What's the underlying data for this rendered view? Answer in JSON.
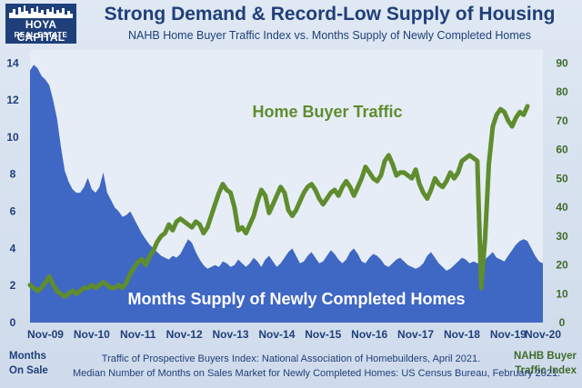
{
  "logo": {
    "main": "HOYA CAPITAL",
    "sub": "REAL ESTATE"
  },
  "header": {
    "title": "Strong Demand & Record-Low Supply of Housing",
    "subtitle": "NAHB Home Buyer Traffic Index vs. Months Supply of Newly Completed Homes"
  },
  "footer": {
    "left_axis_title": [
      "Months",
      "On Sale"
    ],
    "right_axis_title": [
      "NAHB Buyer",
      "Traffic Index"
    ],
    "note_1": "Traffic of Prospective Buyers Index: National Association of Homebuilders, April 2021.",
    "note_2": "Median Number of Months on Sales Market for Newly Completed Homes: US Census Bureau, February 2021."
  },
  "chart_data": {
    "type": "area",
    "title": "Strong Demand & Record-Low Supply of Housing",
    "x_categories": [
      "Nov-09",
      "Nov-10",
      "Nov-11",
      "Nov-12",
      "Nov-13",
      "Nov-14",
      "Nov-15",
      "Nov-16",
      "Nov-17",
      "Nov-18",
      "Nov-19",
      "Nov-20"
    ],
    "y_left": {
      "label": "Months On Sale",
      "ticks": [
        0,
        2,
        4,
        6,
        8,
        10,
        12,
        14
      ],
      "range": [
        0,
        14.7
      ]
    },
    "y_right": {
      "label": "NAHB Buyer Traffic Index",
      "ticks": [
        0,
        10,
        20,
        30,
        40,
        50,
        60,
        70,
        80,
        90
      ],
      "range": [
        0,
        94.5
      ]
    },
    "series": [
      {
        "name": "Months Supply of Newly Completed Homes",
        "kind": "area",
        "axis": "left",
        "color": "#3f67c4",
        "x_start": "Jul-09",
        "values": [
          13.6,
          13.9,
          13.7,
          13.3,
          13.1,
          12.8,
          12.0,
          11.0,
          9.5,
          8.2,
          7.6,
          7.2,
          7.0,
          7.0,
          7.3,
          7.8,
          7.2,
          7.0,
          7.3,
          8.1,
          7.0,
          6.6,
          6.2,
          6.0,
          5.7,
          5.8,
          6.0,
          5.6,
          5.2,
          4.8,
          4.5,
          4.2,
          4.0,
          3.8,
          3.6,
          3.5,
          3.4,
          3.6,
          3.5,
          3.7,
          4.1,
          4.5,
          4.3,
          3.8,
          3.4,
          3.1,
          2.9,
          3.0,
          3.1,
          3.0,
          3.3,
          3.2,
          3.0,
          3.1,
          3.4,
          3.2,
          3.0,
          3.2,
          3.5,
          3.3,
          3.0,
          3.4,
          3.6,
          3.3,
          3.0,
          3.2,
          3.5,
          3.8,
          4.0,
          3.6,
          3.2,
          3.3,
          3.6,
          3.8,
          3.5,
          3.2,
          3.3,
          3.6,
          3.9,
          3.7,
          3.4,
          3.2,
          3.4,
          3.8,
          4.0,
          3.7,
          3.3,
          3.2,
          3.5,
          3.7,
          3.6,
          3.4,
          3.1,
          3.0,
          3.2,
          3.4,
          3.5,
          3.3,
          3.1,
          3.0,
          2.9,
          3.0,
          3.2,
          3.6,
          3.8,
          3.5,
          3.2,
          3.0,
          2.8,
          2.9,
          3.1,
          3.3,
          3.5,
          3.4,
          3.2,
          3.3,
          3.2,
          3.3,
          3.4,
          3.6,
          3.8,
          3.5,
          3.4,
          3.3,
          3.6,
          3.9,
          4.2,
          4.4,
          4.5,
          4.4,
          4.0,
          3.6,
          3.3,
          3.2
        ]
      },
      {
        "name": "Home Buyer Traffic",
        "kind": "line",
        "axis": "right",
        "color": "#5f8d2e",
        "x_start": "Jul-09",
        "values": [
          13,
          12,
          11,
          12,
          14,
          16,
          13,
          11,
          10,
          9,
          10,
          11,
          10,
          11,
          12,
          12,
          13,
          12,
          13,
          14,
          13,
          12,
          12,
          13,
          12,
          14,
          17,
          19,
          21,
          22,
          20,
          23,
          25,
          28,
          30,
          31,
          34,
          32,
          35,
          36,
          35,
          34,
          33,
          35,
          34,
          31,
          33,
          37,
          41,
          45,
          48,
          46,
          45,
          40,
          32,
          33,
          31,
          34,
          37,
          42,
          46,
          44,
          38,
          41,
          44,
          47,
          45,
          39,
          37,
          39,
          42,
          45,
          47,
          48,
          46,
          43,
          41,
          43,
          45,
          46,
          44,
          47,
          49,
          47,
          44,
          47,
          50,
          54,
          52,
          50,
          49,
          51,
          56,
          58,
          55,
          51,
          52,
          52,
          51,
          50,
          53,
          48,
          45,
          43,
          46,
          50,
          48,
          47,
          49,
          52,
          50,
          52,
          56,
          57,
          58,
          57,
          56,
          12,
          29,
          55,
          68,
          72,
          74,
          73,
          70,
          68,
          71,
          73,
          72,
          75
        ]
      }
    ],
    "annotations": [
      "Home Buyer Traffic",
      "Months Supply of Newly Completed Homes"
    ],
    "grid": false,
    "legend": "none"
  }
}
